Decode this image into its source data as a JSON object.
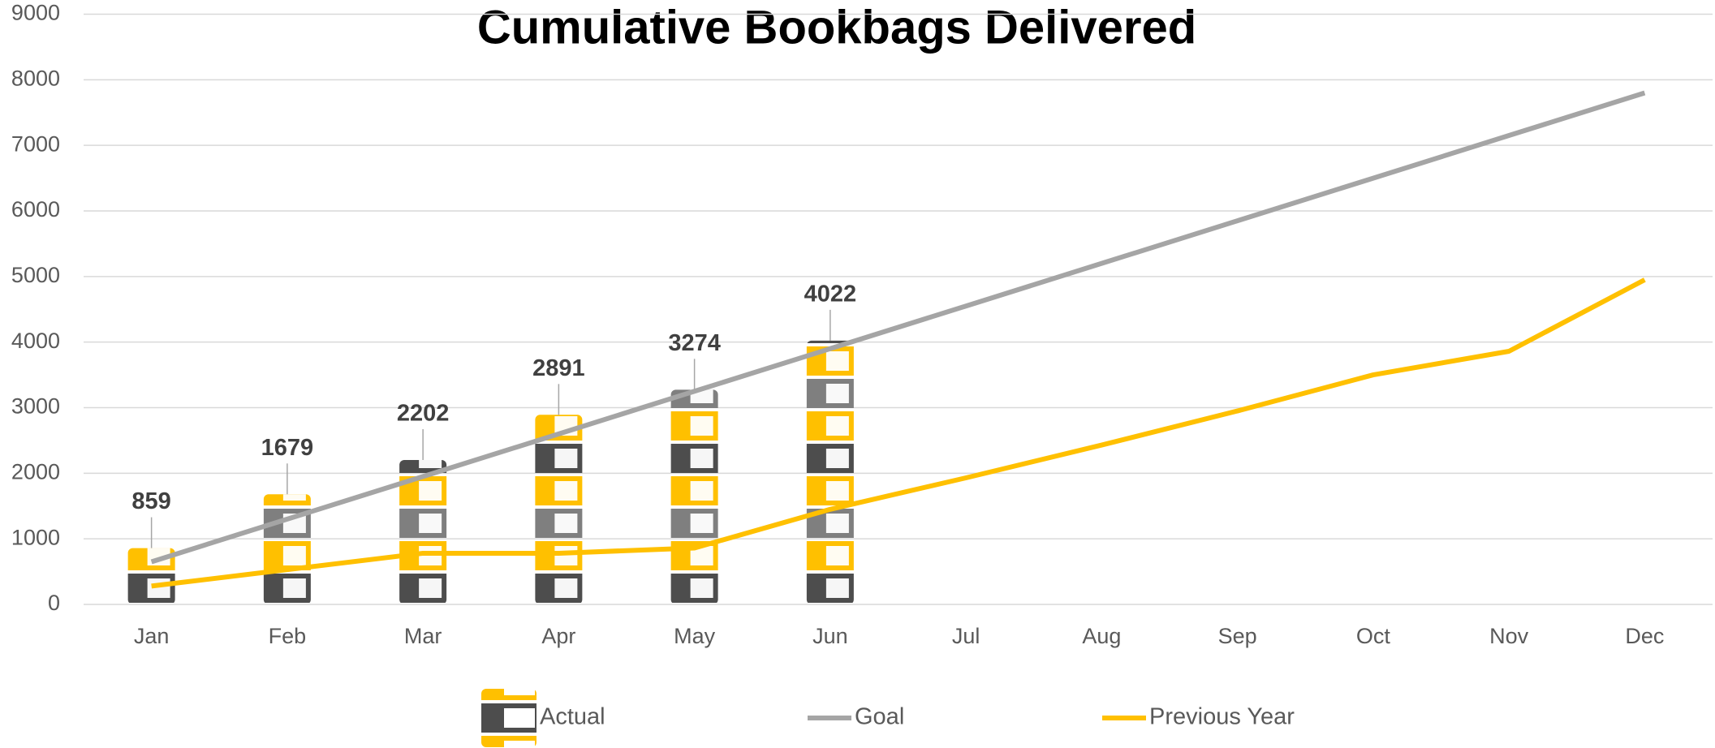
{
  "chart_data": {
    "type": "combo",
    "title": "Cumulative Bookbags Delivered",
    "categories": [
      "Jan",
      "Feb",
      "Mar",
      "Apr",
      "May",
      "Jun",
      "Jul",
      "Aug",
      "Sep",
      "Oct",
      "Nov",
      "Dec"
    ],
    "series": [
      {
        "name": "Actual",
        "type": "bar",
        "color": "#ffc000",
        "values": [
          859,
          1679,
          2202,
          2891,
          3274,
          4022,
          null,
          null,
          null,
          null,
          null,
          null
        ]
      },
      {
        "name": "Goal",
        "type": "line",
        "color": "#a5a5a5",
        "values": [
          650,
          1300,
          1950,
          2600,
          3250,
          3900,
          4550,
          5200,
          5850,
          6500,
          7150,
          7800
        ]
      },
      {
        "name": "Previous Year",
        "type": "line",
        "color": "#ffc000",
        "values": [
          280,
          530,
          780,
          780,
          860,
          1450,
          1930,
          2430,
          2950,
          3500,
          3860,
          4950
        ]
      }
    ],
    "ylim": [
      0,
      9000
    ],
    "yticks": [
      0,
      1000,
      2000,
      3000,
      4000,
      5000,
      6000,
      7000,
      8000,
      9000
    ],
    "grid": true,
    "legend": "bottom"
  }
}
